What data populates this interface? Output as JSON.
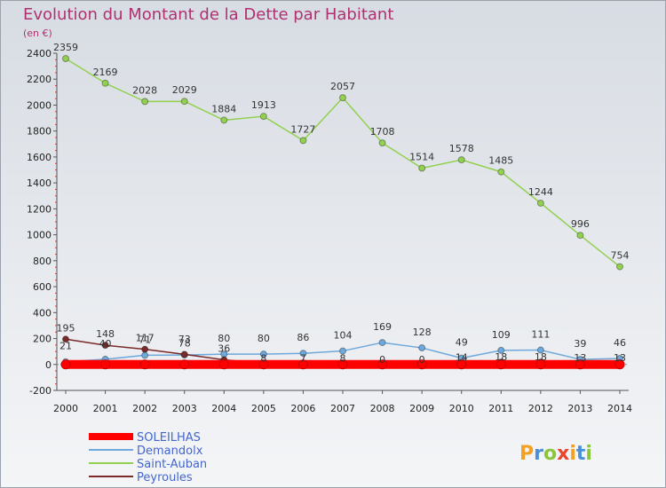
{
  "chart_data": {
    "type": "line",
    "title": "Evolution du Montant de la Dette par Habitant",
    "subtitle": "(en €)",
    "x": [
      "2000",
      "2001",
      "2002",
      "2003",
      "2004",
      "2005",
      "2006",
      "2007",
      "2008",
      "2009",
      "2010",
      "2011",
      "2012",
      "2013",
      "2014"
    ],
    "ylim": [
      -200,
      2400
    ],
    "yticks": [
      -200,
      0,
      200,
      400,
      600,
      800,
      1000,
      1200,
      1400,
      1600,
      1800,
      2000,
      2200,
      2400
    ],
    "grid": false,
    "legend_position": "bottom-left",
    "series": [
      {
        "name": "SOLEILHAS",
        "color": "#ff0000",
        "values": [
          0,
          0,
          0,
          0,
          0,
          0,
          0,
          0,
          0,
          0,
          0,
          0,
          0,
          0,
          0
        ],
        "labels": [
          "",
          "",
          "",
          "",
          "",
          "",
          "",
          "",
          "",
          "",
          "",
          "",
          "",
          "",
          ""
        ]
      },
      {
        "name": "Demandolx",
        "color": "#6fa8dc",
        "values": [
          21,
          40,
          71,
          73,
          80,
          80,
          86,
          104,
          169,
          128,
          49,
          109,
          111,
          39,
          46
        ],
        "labels": [
          "21",
          "40",
          "71",
          "73",
          "80",
          "80",
          "86",
          "104",
          "169",
          "128",
          "49",
          "109",
          "111",
          "39",
          "46"
        ]
      },
      {
        "name": "Saint-Auban",
        "color": "#92d050",
        "values": [
          2359,
          2169,
          2028,
          2029,
          1884,
          1913,
          1727,
          2057,
          1708,
          1514,
          1578,
          1485,
          1244,
          996,
          754
        ],
        "labels": [
          "2359",
          "2169",
          "2028",
          "2029",
          "1884",
          "1913",
          "1727",
          "2057",
          "1708",
          "1514",
          "1578",
          "1485",
          "1244",
          "996",
          "754"
        ]
      },
      {
        "name": "Peyroules",
        "color": "#7b2a2a",
        "values": [
          195,
          148,
          117,
          78,
          36,
          8,
          7,
          8,
          0,
          0,
          14,
          18,
          18,
          13,
          13
        ],
        "labels": [
          "195",
          "148",
          "117",
          "78",
          "36",
          "8",
          "7",
          "8",
          "0",
          "0",
          "14",
          "18",
          "18",
          "13",
          "13"
        ]
      }
    ]
  },
  "brand": {
    "text": "Proxiti",
    "letter_colors": [
      "#f4a022",
      "#4a90d9",
      "#8cc63f",
      "#e8452c",
      "#f4a022",
      "#4a90d9",
      "#8cc63f"
    ]
  }
}
